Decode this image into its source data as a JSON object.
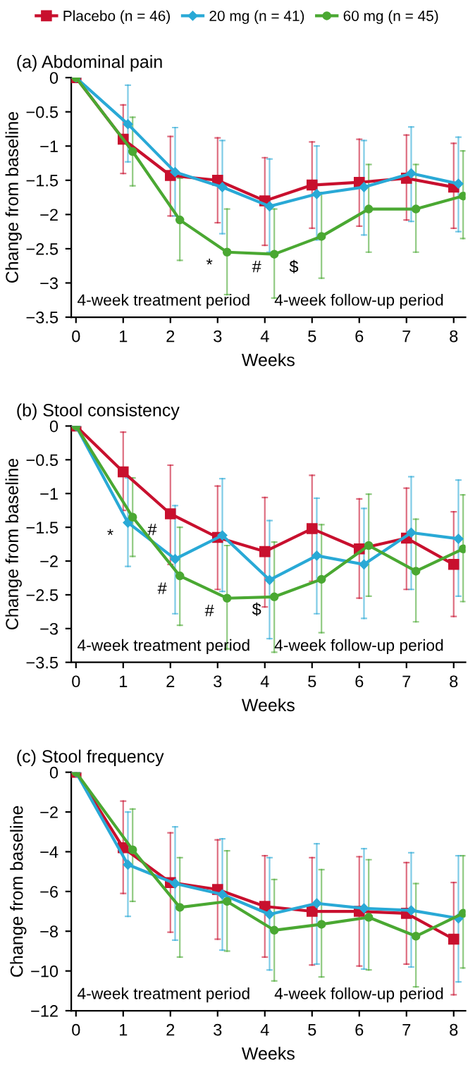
{
  "chart_data": [
    {
      "type": "line",
      "title": "(a) Abdominal pain",
      "xlabel": "Weeks",
      "ylabel": "Change from baseline",
      "xlim": [
        -0.1,
        8.25
      ],
      "xticks": [
        0,
        1,
        2,
        3,
        4,
        5,
        6,
        7,
        8
      ],
      "ylim": [
        -3.5,
        0
      ],
      "yticks": [
        0,
        {
          "value": -0.5,
          "label": "−0.5"
        },
        {
          "value": -1,
          "label": "−1"
        },
        {
          "value": -1.5,
          "label": "−1.5"
        },
        {
          "value": -2,
          "label": "−2"
        },
        {
          "value": -2.5,
          "label": "−2.5"
        },
        {
          "value": -3,
          "label": "−3"
        },
        {
          "value": -3.5,
          "label": "−3.5"
        }
      ],
      "grid": false,
      "legend": "top",
      "series": [
        {
          "name": "Placebo (n = 46)",
          "color": "#c8102e",
          "marker": "square",
          "x": [
            0,
            1,
            2,
            3,
            4,
            5,
            6,
            7,
            8
          ],
          "values": [
            0,
            -0.9,
            -1.43,
            -1.5,
            -1.8,
            -1.57,
            -1.53,
            -1.47,
            -1.6
          ],
          "errors": [
            null,
            [
              -1.4,
              -0.4
            ],
            [
              -2.02,
              -0.86
            ],
            [
              -2.12,
              -0.88
            ],
            [
              -2.45,
              -1.17
            ],
            [
              -2.2,
              -0.94
            ],
            [
              -2.17,
              -0.9
            ],
            [
              -2.08,
              -0.84
            ],
            [
              -2.2,
              -0.96
            ]
          ]
        },
        {
          "name": "20 mg (n = 41)",
          "color": "#29a9d6",
          "marker": "diamond",
          "x": [
            0,
            1.1,
            2.1,
            3.1,
            4.1,
            5.1,
            6.1,
            7.1,
            8.1
          ],
          "values": [
            0,
            -0.68,
            -1.38,
            -1.6,
            -1.88,
            -1.7,
            -1.6,
            -1.4,
            -1.55
          ],
          "errors": [
            null,
            [
              -1.23,
              -0.11
            ],
            [
              -2.02,
              -0.73
            ],
            [
              -2.28,
              -0.92
            ],
            [
              -2.55,
              -1.19
            ],
            [
              -2.37,
              -1.0
            ],
            [
              -2.3,
              -0.92
            ],
            [
              -2.1,
              -0.72
            ],
            [
              -2.25,
              -0.87
            ]
          ]
        },
        {
          "name": "60 mg (n = 45)",
          "color": "#4aa832",
          "marker": "circle",
          "x": [
            0,
            1.2,
            2.2,
            3.2,
            4.2,
            5.2,
            6.2,
            7.2,
            8.2
          ],
          "values": [
            0,
            -1.08,
            -2.08,
            -2.55,
            -2.58,
            -2.32,
            -1.92,
            -1.92,
            -1.73
          ],
          "errors": [
            null,
            [
              -1.58,
              -0.58
            ],
            [
              -2.67,
              -1.47
            ],
            [
              -3.17,
              -1.92
            ],
            [
              -3.22,
              -1.92
            ],
            [
              -2.93,
              -1.68
            ],
            [
              -2.55,
              -1.27
            ],
            [
              -2.55,
              -1.27
            ],
            [
              -2.35,
              -1.07
            ]
          ]
        }
      ],
      "annotations": [
        "4-week treatment period",
        "4-week follow-up period",
        {
          "text": "*",
          "x": 3.2,
          "y": -2.55
        },
        {
          "text": "#",
          "x": 4.2,
          "y": -2.58
        },
        {
          "text": "$",
          "x": 4.2,
          "y": -2.58
        }
      ]
    },
    {
      "type": "line",
      "title": "(b) Stool consistency",
      "xlabel": "Weeks",
      "ylabel": "Change from baseline",
      "xlim": [
        -0.1,
        8.25
      ],
      "xticks": [
        0,
        1,
        2,
        3,
        4,
        5,
        6,
        7,
        8
      ],
      "ylim": [
        -3.5,
        0
      ],
      "yticks": [
        0,
        {
          "value": -0.5,
          "label": "−0.5"
        },
        {
          "value": -1,
          "label": "−1"
        },
        {
          "value": -1.5,
          "label": "−1.5"
        },
        {
          "value": -2,
          "label": "−2"
        },
        {
          "value": -2.5,
          "label": "−2.5"
        },
        {
          "value": -3,
          "label": "−3"
        },
        {
          "value": -3.5,
          "label": "−3.5"
        }
      ],
      "grid": false,
      "series": [
        {
          "color": "#c8102e",
          "marker": "square",
          "x": [
            0,
            1,
            2,
            3,
            4,
            5,
            6,
            7,
            8
          ],
          "values": [
            0,
            -0.68,
            -1.3,
            -1.65,
            -1.86,
            -1.52,
            -1.82,
            -1.66,
            -2.05
          ],
          "errors": [
            null,
            [
              -1.25,
              -0.09
            ],
            [
              -2.05,
              -0.58
            ],
            [
              -2.42,
              -0.89
            ],
            [
              -2.68,
              -1.06
            ],
            [
              -2.3,
              -0.73
            ],
            [
              -2.55,
              -1.08
            ],
            [
              -2.42,
              -0.92
            ],
            [
              -2.82,
              -1.27
            ]
          ]
        },
        {
          "color": "#29a9d6",
          "marker": "diamond",
          "x": [
            0,
            1.1,
            2.1,
            3.1,
            4.1,
            5.1,
            6.1,
            7.1,
            8.1
          ],
          "values": [
            0,
            -1.43,
            -1.97,
            -1.62,
            -2.28,
            -1.92,
            -2.05,
            -1.58,
            -1.67
          ],
          "errors": [
            null,
            [
              -2.08,
              -0.77
            ],
            [
              -2.78,
              -1.18
            ],
            [
              -2.45,
              -0.78
            ],
            [
              -3.15,
              -1.4
            ],
            [
              -2.78,
              -1.07
            ],
            [
              -2.85,
              -1.22
            ],
            [
              -2.42,
              -0.75
            ],
            [
              -2.52,
              -0.8
            ]
          ]
        },
        {
          "color": "#4aa832",
          "marker": "circle",
          "x": [
            0,
            1.2,
            2.2,
            3.2,
            4.2,
            5.2,
            6.2,
            7.2,
            8.2
          ],
          "values": [
            0,
            -1.35,
            -2.22,
            -2.55,
            -2.53,
            -2.27,
            -1.77,
            -2.15,
            -1.82
          ],
          "errors": [
            null,
            [
              -1.93,
              -0.77
            ],
            [
              -2.95,
              -1.5
            ],
            [
              -3.3,
              -1.77
            ],
            [
              -3.35,
              -1.72
            ],
            [
              -3.06,
              -1.46
            ],
            [
              -2.52,
              -1.01
            ],
            [
              -2.9,
              -1.38
            ],
            [
              -2.6,
              -1.02
            ]
          ]
        }
      ],
      "annotations": [
        "4-week treatment period",
        "4-week follow-up period",
        {
          "text": "*",
          "x": 1.1,
          "y": -1.43
        },
        {
          "text": "#",
          "x": 1.2,
          "y": -1.35
        },
        {
          "text": "#",
          "x": 2.2,
          "y": -2.22
        },
        {
          "text": "#",
          "x": 3.2,
          "y": -2.55
        },
        {
          "text": "$",
          "x": 4.2,
          "y": -2.53
        }
      ]
    },
    {
      "type": "line",
      "title": "(c) Stool frequency",
      "xlabel": "Weeks",
      "ylabel": "Change from baseline",
      "xlim": [
        -0.1,
        8.25
      ],
      "xticks": [
        0,
        1,
        2,
        3,
        4,
        5,
        6,
        7,
        8
      ],
      "ylim": [
        -12,
        0
      ],
      "yticks": [
        0,
        {
          "value": -2,
          "label": "−2"
        },
        {
          "value": -4,
          "label": "−4"
        },
        {
          "value": -6,
          "label": "−6"
        },
        {
          "value": -8,
          "label": "−8"
        },
        {
          "value": -10,
          "label": "−10"
        },
        {
          "value": -12,
          "label": "−12"
        }
      ],
      "grid": false,
      "series": [
        {
          "color": "#c8102e",
          "marker": "square",
          "x": [
            0,
            1,
            2,
            3,
            4,
            5,
            6,
            7,
            8
          ],
          "values": [
            0,
            -3.8,
            -5.55,
            -5.9,
            -6.75,
            -7.0,
            -7.0,
            -7.1,
            -8.4
          ],
          "errors": [
            null,
            [
              -6.1,
              -1.45
            ],
            [
              -8.05,
              -3.05
            ],
            [
              -8.4,
              -3.4
            ],
            [
              -9.3,
              -4.2
            ],
            [
              -9.7,
              -4.3
            ],
            [
              -9.75,
              -4.25
            ],
            [
              -9.65,
              -4.55
            ],
            [
              -11.2,
              -5.55
            ]
          ]
        },
        {
          "color": "#29a9d6",
          "marker": "diamond",
          "x": [
            0,
            1.1,
            2.1,
            3.1,
            4.1,
            5.1,
            6.1,
            7.1,
            8.1
          ],
          "values": [
            0,
            -4.65,
            -5.6,
            -6.15,
            -7.15,
            -6.6,
            -6.85,
            -6.95,
            -7.35
          ],
          "errors": [
            null,
            [
              -7.25,
              -2.0
            ],
            [
              -8.45,
              -2.75
            ],
            [
              -8.95,
              -3.35
            ],
            [
              -9.95,
              -4.3
            ],
            [
              -9.65,
              -3.6
            ],
            [
              -9.9,
              -3.85
            ],
            [
              -9.8,
              -4.05
            ],
            [
              -10.55,
              -4.2
            ]
          ]
        },
        {
          "color": "#4aa832",
          "marker": "circle",
          "x": [
            0,
            1.2,
            2.2,
            3.2,
            4.2,
            5.2,
            6.2,
            7.2,
            8.2
          ],
          "values": [
            0,
            -3.9,
            -6.8,
            -6.5,
            -7.95,
            -7.65,
            -7.3,
            -8.25,
            -7.1
          ],
          "errors": [
            null,
            [
              -6.5,
              -1.85
            ],
            [
              -9.3,
              -4.3
            ],
            [
              -9.0,
              -3.95
            ],
            [
              -10.5,
              -5.4
            ],
            [
              -10.3,
              -4.9
            ],
            [
              -9.95,
              -4.4
            ],
            [
              -10.8,
              -5.6
            ],
            [
              -9.85,
              -4.2
            ]
          ]
        }
      ],
      "annotations": [
        "4-week treatment period",
        "4-week follow-up period"
      ]
    }
  ]
}
